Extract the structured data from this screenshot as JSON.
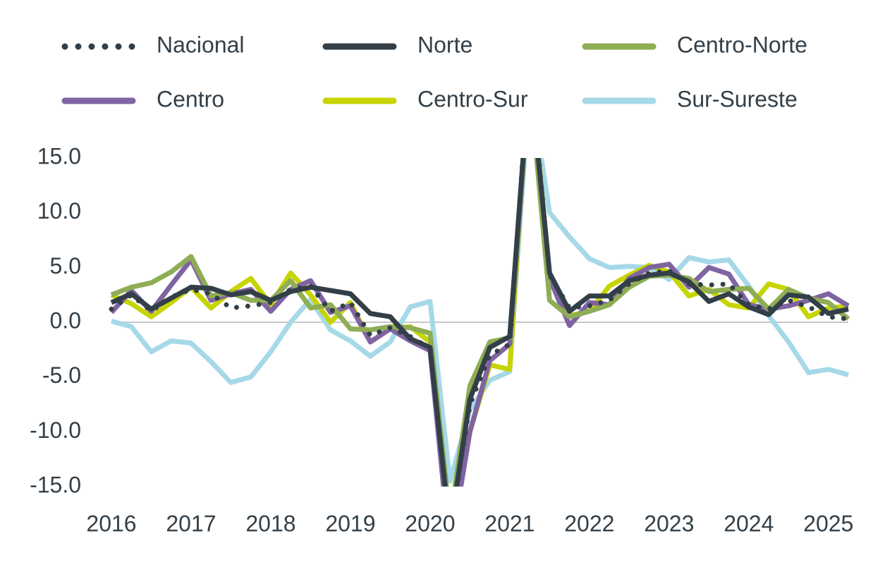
{
  "chart_data": {
    "type": "line",
    "categories": [
      "2016",
      null,
      null,
      null,
      "2017",
      null,
      null,
      null,
      "2018",
      null,
      null,
      null,
      "2019",
      null,
      null,
      null,
      "2020",
      null,
      null,
      null,
      "2021",
      null,
      null,
      null,
      "2022",
      null,
      null,
      null,
      "2023",
      null,
      null,
      null,
      "2024",
      null,
      null,
      null,
      "2025",
      null
    ],
    "ylim": [
      -15,
      15
    ],
    "yticks": [
      {
        "value": 15,
        "label": "15.0"
      },
      {
        "value": 10,
        "label": "10.0"
      },
      {
        "value": 5,
        "label": "5.0"
      },
      {
        "value": 0,
        "label": "0.0"
      },
      {
        "value": -5,
        "label": "-5.0"
      },
      {
        "value": -10,
        "label": "-10.0"
      },
      {
        "value": -15,
        "label": "-15.0"
      }
    ],
    "zero_line": true,
    "series": [
      {
        "name": "Nacional",
        "color": "#333f48",
        "style": "dotted",
        "values": [
          1.2,
          2.5,
          1.0,
          2.3,
          3.0,
          2.6,
          1.3,
          1.5,
          1.8,
          3.0,
          3.3,
          1.0,
          1.8,
          -1.2,
          -0.5,
          -1.3,
          -2.4,
          -19,
          -7.5,
          -3.0,
          -2.0,
          24,
          4.3,
          1.3,
          1.5,
          2.0,
          3.5,
          4.5,
          4.7,
          3.5,
          3.4,
          3.5,
          1.6,
          1.2,
          2.0,
          1.4,
          0.5,
          0.3
        ]
      },
      {
        "name": "Norte",
        "color": "#333f48",
        "style": "solid",
        "values": [
          1.8,
          2.6,
          1.2,
          2.2,
          3.2,
          3.1,
          2.5,
          2.8,
          2.0,
          2.8,
          3.2,
          2.9,
          2.6,
          0.8,
          0.5,
          -1.5,
          -2.3,
          -19,
          -7,
          -2.3,
          -1.3,
          23,
          4.5,
          1.0,
          2.4,
          2.4,
          3.8,
          4.3,
          4.5,
          3.7,
          1.9,
          2.6,
          1.4,
          0.7,
          2.5,
          2.3,
          0.8,
          1.2
        ]
      },
      {
        "name": "Centro-Norte",
        "color": "#8fad55",
        "style": "solid",
        "values": [
          2.5,
          3.2,
          3.6,
          4.6,
          6.0,
          2.4,
          2.7,
          2.0,
          2.0,
          3.8,
          1.3,
          1.6,
          -0.6,
          -0.7,
          -0.4,
          -0.5,
          -1.0,
          -18,
          -5.8,
          -1.8,
          -1.4,
          22,
          2.0,
          0.5,
          1.0,
          1.6,
          3.2,
          4.2,
          4.3,
          4.0,
          2.8,
          3.0,
          3.1,
          1.2,
          3.0,
          2.2,
          1.8,
          0.3
        ]
      },
      {
        "name": "Centro",
        "color": "#8064a2",
        "style": "solid",
        "values": [
          0.9,
          2.9,
          1.0,
          3.4,
          5.7,
          2.0,
          2.6,
          3.0,
          1.0,
          3.0,
          3.8,
          0.9,
          1.5,
          -1.8,
          -0.6,
          -1.7,
          -2.6,
          -21,
          -10,
          -3.5,
          -2.0,
          22,
          4.0,
          -0.3,
          1.8,
          1.6,
          4.0,
          5.0,
          5.3,
          3.2,
          5.0,
          4.4,
          1.6,
          1.2,
          1.5,
          2.0,
          2.6,
          1.5
        ]
      },
      {
        "name": "Centro-Sur",
        "color": "#c6d400",
        "style": "solid",
        "values": [
          2.5,
          1.7,
          0.5,
          1.8,
          3.2,
          1.3,
          2.8,
          4.0,
          1.6,
          4.5,
          2.5,
          0.0,
          1.8,
          -1.8,
          -0.6,
          -0.4,
          -1.8,
          -20,
          -10,
          -3.9,
          -4.3,
          24,
          4.0,
          0.6,
          1.0,
          3.3,
          4.3,
          5.2,
          4.6,
          2.4,
          3.0,
          1.6,
          1.3,
          3.5,
          3.0,
          0.5,
          1.3,
          1.5
        ]
      },
      {
        "name": "Sur-Sureste",
        "color": "#a6d9e8",
        "style": "solid",
        "values": [
          0.1,
          -0.4,
          -2.7,
          -1.7,
          -1.9,
          -3.6,
          -5.5,
          -5.0,
          -2.7,
          0.0,
          2.1,
          -0.7,
          -1.7,
          -3.1,
          -1.8,
          1.4,
          1.9,
          -14.5,
          -8.0,
          -5.3,
          -4.5,
          22,
          10.0,
          7.8,
          5.8,
          5.0,
          5.1,
          5.0,
          3.9,
          5.9,
          5.5,
          5.7,
          3.3,
          0.6,
          -1.8,
          -4.6,
          -4.3,
          -4.8
        ]
      }
    ]
  }
}
